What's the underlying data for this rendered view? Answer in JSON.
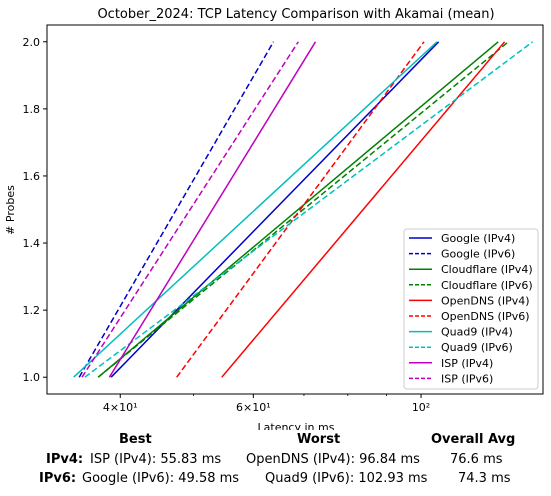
{
  "chart_data": {
    "type": "line",
    "title": "October_2024: TCP Latency Comparison with Akamai (mean)",
    "xlabel": "Latency in ms",
    "ylabel": "# Probes",
    "xscale": "log",
    "xlim": [
      32,
      145
    ],
    "ylim": [
      0.95,
      2.05
    ],
    "x_ticks": [
      {
        "value": 40,
        "label": "4×10¹"
      },
      {
        "value": 60,
        "label": "6×10¹"
      },
      {
        "value": 100,
        "label": "10²"
      }
    ],
    "y_ticks": [
      {
        "value": 1.0,
        "label": "1.0"
      },
      {
        "value": 1.2,
        "label": "1.2"
      },
      {
        "value": 1.4,
        "label": "1.4"
      },
      {
        "value": 1.6,
        "label": "1.6"
      },
      {
        "value": 1.8,
        "label": "1.8"
      },
      {
        "value": 2.0,
        "label": "2.0"
      }
    ],
    "legend_position": "lower-right",
    "series": [
      {
        "name": "Google (IPv4)",
        "color": "#0000cc",
        "dash": "solid",
        "x": [
          38.9,
          105.5
        ],
        "y": [
          1.0,
          2.0
        ]
      },
      {
        "name": "Google (IPv6)",
        "color": "#0000cc",
        "dash": "dashed",
        "x": [
          35.3,
          63.8
        ],
        "y": [
          1.0,
          2.0
        ]
      },
      {
        "name": "Cloudflare (IPv4)",
        "color": "#008000",
        "dash": "solid",
        "x": [
          37.4,
          126.5
        ],
        "y": [
          1.0,
          2.0
        ]
      },
      {
        "name": "Cloudflare (IPv6)",
        "color": "#008000",
        "dash": "dashed",
        "x": [
          37.4,
          130.5
        ],
        "y": [
          1.0,
          2.0
        ]
      },
      {
        "name": "OpenDNS (IPv4)",
        "color": "#ff0000",
        "dash": "solid",
        "x": [
          54.5,
          129.0
        ],
        "y": [
          1.0,
          2.0
        ]
      },
      {
        "name": "OpenDNS (IPv6)",
        "color": "#ff0000",
        "dash": "dashed",
        "x": [
          47.5,
          100.9
        ],
        "y": [
          1.0,
          2.0
        ]
      },
      {
        "name": "Quad9 (IPv4)",
        "color": "#00bfbf",
        "dash": "solid",
        "x": [
          34.7,
          105.0
        ],
        "y": [
          1.0,
          2.0
        ]
      },
      {
        "name": "Quad9 (IPv6)",
        "color": "#00bfbf",
        "dash": "dashed",
        "x": [
          35.9,
          140.5
        ],
        "y": [
          1.0,
          2.0
        ]
      },
      {
        "name": "ISP (IPv4)",
        "color": "#bf00bf",
        "dash": "solid",
        "x": [
          38.7,
          72.5
        ],
        "y": [
          1.0,
          2.0
        ]
      },
      {
        "name": "ISP (IPv6)",
        "color": "#bf00bf",
        "dash": "dashed",
        "x": [
          35.6,
          68.8
        ],
        "y": [
          1.0,
          2.0
        ]
      }
    ]
  },
  "summary": {
    "headers": {
      "best": "Best",
      "worst": "Worst",
      "avg": "Overall Avg"
    },
    "rows": [
      {
        "label": "IPv4:",
        "best": "ISP (IPv4): 55.83 ms",
        "worst": "OpenDNS (IPv4): 96.84 ms",
        "avg": "76.6 ms"
      },
      {
        "label": "IPv6:",
        "best": "Google (IPv6): 49.58 ms",
        "worst": "Quad9 (IPv6): 102.93 ms",
        "avg": "74.3 ms"
      }
    ]
  }
}
